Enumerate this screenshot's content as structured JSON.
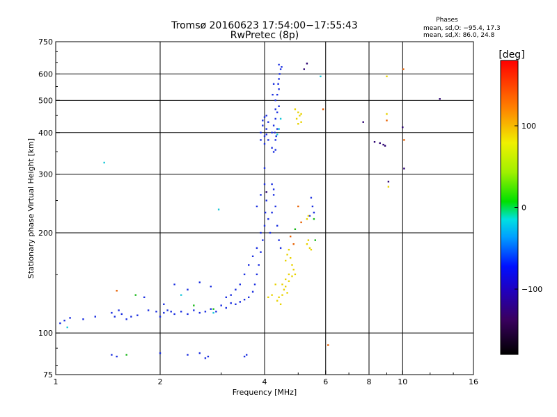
{
  "chart_data": {
    "type": "scatter",
    "title": "Tromsø 20160623 17:54:00−17:55:43",
    "subtitle": "RwPretec (8p)",
    "xlabel": "Frequency [MHz]",
    "ylabel": "Stationary phase Virtual Height [km]",
    "x_scale": "log",
    "y_scale": "log",
    "xlim": [
      1,
      16
    ],
    "ylim": [
      75,
      750
    ],
    "x_ticks": [
      1,
      2,
      4,
      6,
      8,
      10,
      16
    ],
    "x_tick_labels": [
      "1",
      "2",
      "4",
      "6",
      "8",
      "10",
      "16"
    ],
    "y_ticks": [
      75,
      100,
      200,
      300,
      400,
      500,
      600,
      750
    ],
    "y_tick_labels": [
      "75",
      "100",
      "200",
      "300",
      "400",
      "500",
      "600",
      "750"
    ],
    "grid": true,
    "stats": {
      "heading": "Phases",
      "line1": "mean, sd,O: −95.4, 17.3",
      "line2": "mean, sd,X:  86.0, 24.8"
    },
    "colorbar": {
      "label": "[deg]",
      "range": [
        -180,
        180
      ],
      "ticks": [
        100,
        0,
        -100
      ],
      "tick_labels": [
        "100",
        "0",
        "−100"
      ]
    },
    "series": [
      {
        "name": "",
        "color": "#1a2ee0",
        "points": [
          [
            1.03,
            107
          ],
          [
            1.06,
            109
          ],
          [
            1.1,
            111
          ],
          [
            1.2,
            110
          ],
          [
            1.3,
            112
          ],
          [
            1.45,
            115
          ],
          [
            1.48,
            112
          ],
          [
            1.52,
            117
          ],
          [
            1.55,
            114
          ],
          [
            1.6,
            110
          ],
          [
            1.65,
            112
          ],
          [
            1.72,
            113
          ],
          [
            1.85,
            117
          ],
          [
            1.95,
            116
          ],
          [
            2.0,
            112
          ],
          [
            2.05,
            115
          ],
          [
            2.1,
            117
          ],
          [
            2.15,
            116
          ],
          [
            2.2,
            114
          ],
          [
            2.3,
            116
          ],
          [
            2.4,
            114
          ],
          [
            2.5,
            117
          ],
          [
            2.6,
            115
          ],
          [
            2.7,
            116
          ],
          [
            2.8,
            118
          ],
          [
            2.9,
            116
          ],
          [
            3.0,
            121
          ],
          [
            3.1,
            119
          ],
          [
            3.2,
            123
          ],
          [
            3.3,
            122
          ],
          [
            3.4,
            124
          ],
          [
            3.5,
            126
          ],
          [
            3.6,
            128
          ],
          [
            3.7,
            133
          ],
          [
            3.75,
            140
          ],
          [
            3.8,
            150
          ],
          [
            3.85,
            160
          ],
          [
            3.9,
            175
          ],
          [
            3.95,
            190
          ],
          [
            4.0,
            210
          ],
          [
            4.02,
            230
          ],
          [
            4.05,
            250
          ],
          [
            3.9,
            200
          ],
          [
            3.8,
            180
          ],
          [
            3.7,
            170
          ],
          [
            3.6,
            160
          ],
          [
            3.5,
            150
          ],
          [
            3.4,
            140
          ],
          [
            3.3,
            135
          ],
          [
            3.2,
            130
          ],
          [
            3.1,
            128
          ],
          [
            4.1,
            220
          ],
          [
            4.15,
            200
          ],
          [
            4.2,
            230
          ],
          [
            4.25,
            260
          ],
          [
            4.3,
            240
          ],
          [
            4.35,
            210
          ],
          [
            4.4,
            190
          ],
          [
            4.45,
            180
          ],
          [
            4.2,
            280
          ],
          [
            4.25,
            270
          ],
          [
            2.2,
            140
          ],
          [
            2.4,
            135
          ],
          [
            2.6,
            142
          ],
          [
            2.8,
            138
          ],
          [
            1.8,
            128
          ],
          [
            2.05,
            122
          ],
          [
            3.8,
            240
          ],
          [
            3.9,
            260
          ],
          [
            4.0,
            280
          ],
          [
            3.9,
            400
          ],
          [
            3.95,
            420
          ],
          [
            4.0,
            390
          ],
          [
            4.05,
            410
          ],
          [
            4.1,
            380
          ],
          [
            4.0,
            370
          ],
          [
            3.95,
            435
          ],
          [
            4.05,
            450
          ],
          [
            4.1,
            430
          ],
          [
            3.9,
            380
          ],
          [
            4.0,
            445
          ],
          [
            4.05,
            395
          ],
          [
            4.2,
            360
          ],
          [
            4.25,
            350
          ],
          [
            4.3,
            355
          ],
          [
            4.2,
            400
          ],
          [
            4.25,
            420
          ],
          [
            4.3,
            440
          ],
          [
            4.35,
            460
          ],
          [
            4.4,
            480
          ],
          [
            4.3,
            500
          ],
          [
            4.35,
            520
          ],
          [
            4.4,
            540
          ],
          [
            4.38,
            560
          ],
          [
            4.4,
            580
          ],
          [
            4.42,
            600
          ],
          [
            4.45,
            620
          ],
          [
            4.4,
            640
          ],
          [
            4.48,
            630
          ],
          [
            4.3,
            470
          ],
          [
            4.35,
            410
          ],
          [
            4.3,
            380
          ],
          [
            4.28,
            400
          ],
          [
            4.32,
            390
          ],
          [
            4.22,
            520
          ],
          [
            4.25,
            560
          ],
          [
            5.45,
            255
          ],
          [
            5.5,
            240
          ],
          [
            5.55,
            230
          ],
          [
            5.4,
            225
          ],
          [
            1.5,
            85
          ],
          [
            1.45,
            86
          ],
          [
            2.0,
            87
          ],
          [
            2.4,
            86
          ],
          [
            2.6,
            87
          ],
          [
            2.7,
            84
          ],
          [
            2.75,
            85
          ],
          [
            3.5,
            85
          ],
          [
            3.55,
            86
          ],
          [
            4.0,
            313
          ]
        ]
      },
      {
        "name": "",
        "color": "#e8d200",
        "points": [
          [
            4.6,
            165
          ],
          [
            4.65,
            172
          ],
          [
            4.7,
            178
          ],
          [
            4.75,
            168
          ],
          [
            4.8,
            160
          ],
          [
            4.85,
            155
          ],
          [
            4.7,
            150
          ],
          [
            4.6,
            145
          ],
          [
            4.5,
            140
          ],
          [
            4.55,
            135
          ],
          [
            4.5,
            130
          ],
          [
            4.4,
            128
          ],
          [
            4.35,
            125
          ],
          [
            4.45,
            122
          ],
          [
            4.6,
            138
          ],
          [
            4.7,
            143
          ],
          [
            4.8,
            148
          ],
          [
            4.9,
            150
          ],
          [
            4.65,
            132
          ],
          [
            5.3,
            185
          ],
          [
            5.35,
            190
          ],
          [
            5.4,
            180
          ],
          [
            5.45,
            178
          ],
          [
            5.3,
            220
          ],
          [
            5.35,
            225
          ],
          [
            5.0,
            460
          ],
          [
            5.05,
            450
          ],
          [
            4.95,
            440
          ],
          [
            5.1,
            430
          ],
          [
            5.0,
            425
          ],
          [
            4.9,
            470
          ],
          [
            5.1,
            455
          ],
          [
            9.0,
            590
          ],
          [
            9.1,
            275
          ],
          [
            9.0,
            455
          ],
          [
            4.2,
            130
          ],
          [
            4.1,
            128
          ],
          [
            4.3,
            140
          ]
        ]
      },
      {
        "name": "",
        "color": "#18c8d8",
        "points": [
          [
            1.38,
            325
          ],
          [
            2.85,
            115
          ],
          [
            2.95,
            235
          ],
          [
            4.4,
            410
          ],
          [
            4.35,
            395
          ],
          [
            4.45,
            440
          ],
          [
            5.8,
            590
          ],
          [
            1.08,
            104
          ],
          [
            2.3,
            130
          ]
        ]
      },
      {
        "name": "",
        "color": "#e86000",
        "points": [
          [
            4.75,
            195
          ],
          [
            4.85,
            185
          ],
          [
            5.0,
            240
          ],
          [
            5.1,
            215
          ],
          [
            5.9,
            470
          ],
          [
            6.1,
            92
          ],
          [
            9.0,
            435
          ],
          [
            10.05,
            620
          ],
          [
            10.1,
            380
          ],
          [
            1.5,
            134
          ]
        ]
      },
      {
        "name": "",
        "color": "#18b818",
        "points": [
          [
            1.6,
            86
          ],
          [
            1.7,
            130
          ],
          [
            2.85,
            118
          ],
          [
            2.5,
            121
          ],
          [
            4.9,
            205
          ],
          [
            5.55,
            220
          ],
          [
            5.6,
            190
          ]
        ]
      },
      {
        "name": "",
        "color": "#2a0070",
        "points": [
          [
            7.7,
            430
          ],
          [
            8.3,
            375
          ],
          [
            8.6,
            372
          ],
          [
            8.8,
            368
          ],
          [
            8.9,
            365
          ],
          [
            10.0,
            415
          ],
          [
            12.8,
            505
          ],
          [
            5.3,
            645
          ],
          [
            9.1,
            285
          ],
          [
            10.1,
            312
          ],
          [
            5.2,
            620
          ],
          [
            4.05,
            265
          ]
        ]
      }
    ]
  }
}
